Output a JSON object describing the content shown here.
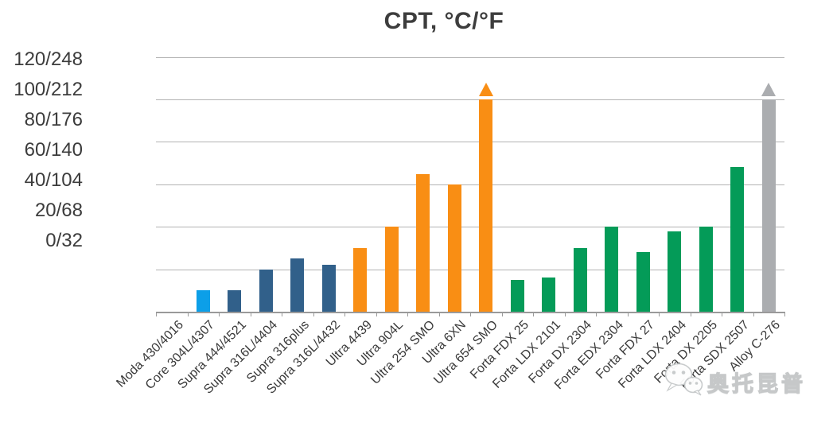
{
  "title": "CPT, °C/°F",
  "watermark": {
    "text": "奥托昆普",
    "icon": "wechat-icon"
  },
  "colors": {
    "lightblue": "#0c9fe8",
    "steelblue": "#31608a",
    "orange": "#f98e14",
    "green": "#049b58",
    "gray": "#abadb0",
    "grid": "#b3b3b3",
    "axis": "#9a9a9a",
    "text": "#3d3d3d"
  },
  "chart_data": {
    "type": "bar",
    "title": "CPT, °C/°F",
    "xlabel": "",
    "ylabel": "CPT, °C/°F",
    "unit": "°C (axis labels show °C/°F pairs)",
    "ylim": [
      0,
      120
    ],
    "grid": true,
    "legend": "none",
    "ytick_labels": [
      "120/248",
      "100/212",
      "80/176",
      "60/140",
      "40/104",
      "20/68",
      "0/32"
    ],
    "ytick_values": [
      120,
      100,
      80,
      60,
      40,
      20,
      0
    ],
    "categories": [
      "Moda 430/4016",
      "Core 304L/4307",
      "Supra 444/4521",
      "Supra 316L/4404",
      "Supra 316plus",
      "Supra 316L/4432",
      "Ultra 4439",
      "Ultra 904L",
      "Ultra 254 SMO",
      "Ultra 6XN",
      "Ultra 654 SMO",
      "Forta FDX 25",
      "Forta LDX 2101",
      "Forta DX 2304",
      "Forta EDX 2304",
      "Forta FDX 27",
      "Forta LDX 2404",
      "Forta DX 2205",
      "Forta SDX 2507",
      "Alloy C-276"
    ],
    "values": [
      0,
      10,
      10,
      20,
      25,
      22,
      30,
      40,
      65,
      60,
      100,
      15,
      16,
      30,
      40,
      28,
      38,
      40,
      68,
      100
    ],
    "bars": [
      {
        "label": "Moda 430/4016",
        "value": 0,
        "color": "lightblue",
        "overflow": false
      },
      {
        "label": "Core 304L/4307",
        "value": 10,
        "color": "lightblue",
        "overflow": false
      },
      {
        "label": "Supra 444/4521",
        "value": 10,
        "color": "steelblue",
        "overflow": false
      },
      {
        "label": "Supra 316L/4404",
        "value": 20,
        "color": "steelblue",
        "overflow": false
      },
      {
        "label": "Supra 316plus",
        "value": 25,
        "color": "steelblue",
        "overflow": false
      },
      {
        "label": "Supra 316L/4432",
        "value": 22,
        "color": "steelblue",
        "overflow": false
      },
      {
        "label": "Ultra 4439",
        "value": 30,
        "color": "orange",
        "overflow": false
      },
      {
        "label": "Ultra 904L",
        "value": 40,
        "color": "orange",
        "overflow": false
      },
      {
        "label": "Ultra 254 SMO",
        "value": 65,
        "color": "orange",
        "overflow": false
      },
      {
        "label": "Ultra 6XN",
        "value": 60,
        "color": "orange",
        "overflow": false
      },
      {
        "label": "Ultra 654 SMO",
        "value": 100,
        "color": "orange",
        "overflow": true
      },
      {
        "label": "Forta FDX 25",
        "value": 15,
        "color": "green",
        "overflow": false
      },
      {
        "label": "Forta LDX 2101",
        "value": 16,
        "color": "green",
        "overflow": false
      },
      {
        "label": "Forta DX 2304",
        "value": 30,
        "color": "green",
        "overflow": false
      },
      {
        "label": "Forta EDX 2304",
        "value": 40,
        "color": "green",
        "overflow": false
      },
      {
        "label": "Forta FDX 27",
        "value": 28,
        "color": "green",
        "overflow": false
      },
      {
        "label": "Forta LDX 2404",
        "value": 38,
        "color": "green",
        "overflow": false
      },
      {
        "label": "Forta DX 2205",
        "value": 40,
        "color": "green",
        "overflow": false
      },
      {
        "label": "Forta SDX 2507",
        "value": 68,
        "color": "green",
        "overflow": false
      },
      {
        "label": "Alloy C-276",
        "value": 100,
        "color": "gray",
        "overflow": true
      }
    ]
  }
}
